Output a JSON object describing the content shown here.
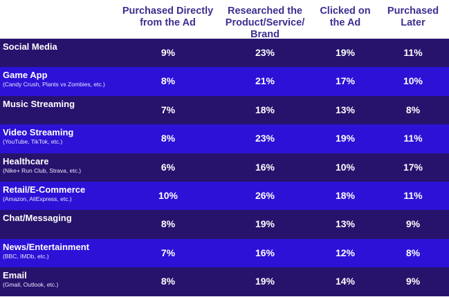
{
  "chart_data": {
    "type": "table",
    "columns": [
      "Purchased Directly from the Ad",
      "Researched the Product/Service/ Brand",
      "Clicked on the Ad",
      "Purchased Later"
    ],
    "rows": [
      {
        "label": "Social Media",
        "sublabel": "",
        "values": [
          "9%",
          "23%",
          "19%",
          "11%"
        ]
      },
      {
        "label": "Game App",
        "sublabel": "(Candy Crush, Plants vs Zombies, etc.)",
        "values": [
          "8%",
          "21%",
          "17%",
          "10%"
        ]
      },
      {
        "label": "Music Streaming",
        "sublabel": "",
        "values": [
          "7%",
          "18%",
          "13%",
          "8%"
        ]
      },
      {
        "label": "Video Streaming",
        "sublabel": "(YouTube, TikTok, etc.)",
        "values": [
          "8%",
          "23%",
          "19%",
          "11%"
        ]
      },
      {
        "label": "Healthcare",
        "sublabel": "(Nike+ Run Club, Strava, etc.)",
        "values": [
          "6%",
          "16%",
          "10%",
          "17%"
        ]
      },
      {
        "label": "Retail/E-Commerce",
        "sublabel": "(Amazon, AliExpress, etc.)",
        "values": [
          "10%",
          "26%",
          "18%",
          "11%"
        ]
      },
      {
        "label": "Chat/Messaging",
        "sublabel": "",
        "values": [
          "8%",
          "19%",
          "13%",
          "9%"
        ]
      },
      {
        "label": "News/Entertainment",
        "sublabel": "(BBC, IMDb, etc.)",
        "values": [
          "7%",
          "16%",
          "12%",
          "8%"
        ]
      },
      {
        "label": "Email",
        "sublabel": "(Gmail, Outlook, etc.)",
        "values": [
          "8%",
          "19%",
          "14%",
          "9%"
        ]
      }
    ]
  },
  "colors": {
    "header_text": "#3b2f8f",
    "row_dark": "#27136c",
    "row_blue": "#2c12d6",
    "cell_text": "#ffffff"
  }
}
